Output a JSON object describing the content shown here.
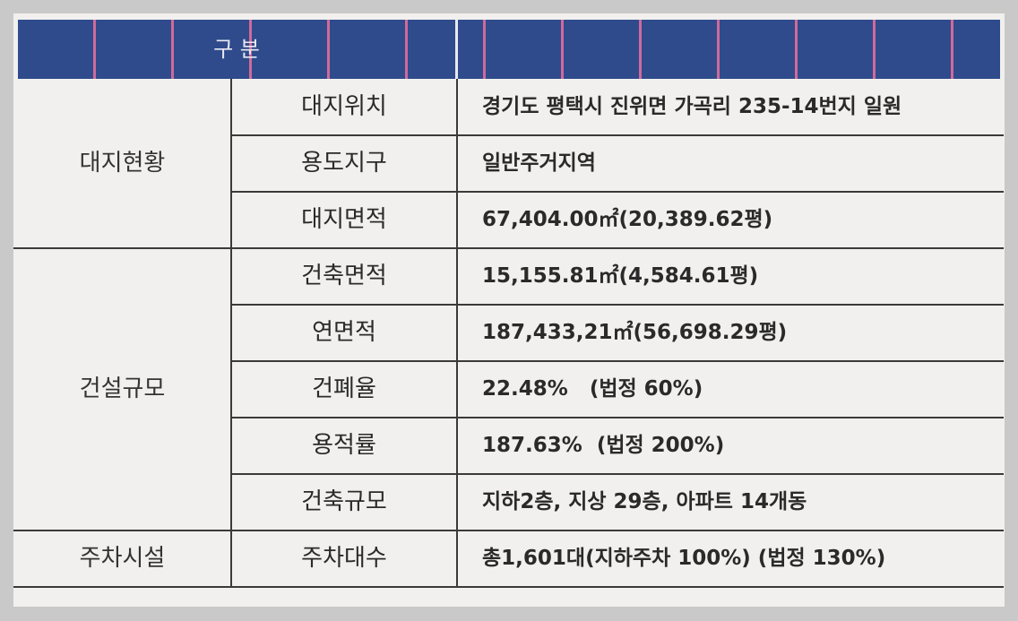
{
  "header": {
    "title": "구 분"
  },
  "groups": [
    {
      "label": "대지현황",
      "rows": [
        {
          "item": "대지위치",
          "value": "경기도 평택시 진위면 가곡리 235-14번지 일원"
        },
        {
          "item": "용도지구",
          "value": "일반주거지역"
        },
        {
          "item": "대지면적",
          "value": "67,404.00㎡(20,389.62평)"
        }
      ]
    },
    {
      "label": "건설규모",
      "rows": [
        {
          "item": "건축면적",
          "value": "15,155.81㎡(4,584.61평)"
        },
        {
          "item": "연면적",
          "value": "187,433,21㎡(56,698.29평)"
        },
        {
          "item": "건폐율",
          "value": "22.48%   (법정 60%)"
        },
        {
          "item": "용적률",
          "value": "187.63%  (법정 200%)"
        },
        {
          "item": "건축규모",
          "value": "지하2층, 지상 29층, 아파트 14개동"
        }
      ]
    },
    {
      "label": "주차시설",
      "rows": [
        {
          "item": "주차대수",
          "value": "총1,601대(지하주차 100%) (법정 130%)"
        }
      ]
    }
  ]
}
